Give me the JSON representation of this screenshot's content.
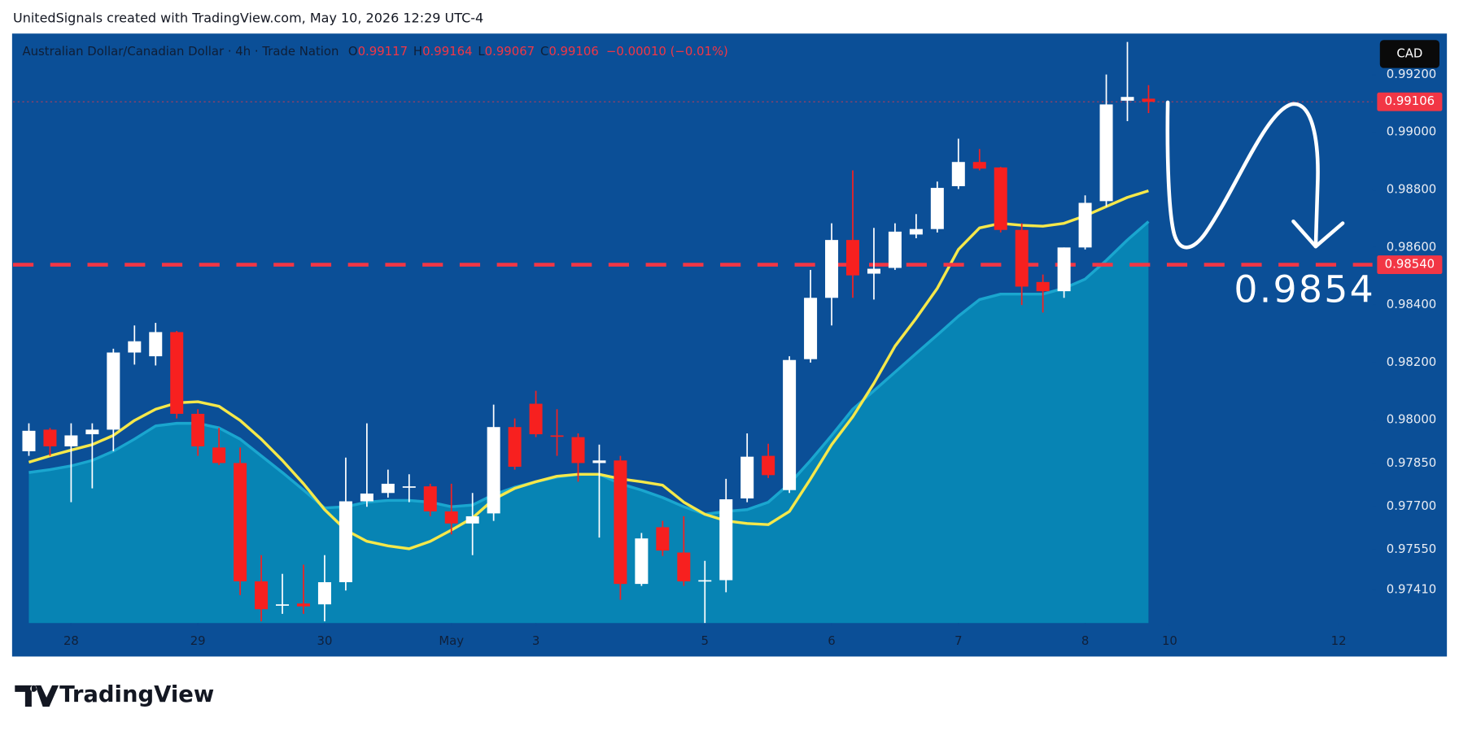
{
  "header": "UnitedSignals created with TradingView.com, May 10, 2026 12:29 UTC-4",
  "footer": "TradingView",
  "chart_data": {
    "type": "candlestick",
    "legend": {
      "title": "Australian Dollar/Canadian Dollar · 4h · Trade Nation",
      "labels": [
        "O",
        "H",
        "L",
        "C"
      ],
      "change": "−0.00010 (−0.01%)"
    },
    "currency": "CAD",
    "up_color": "#ffffff",
    "down_color": "#f7201f",
    "ohlc": [
      [
        0.97892,
        0.97989,
        0.97876,
        0.97963
      ],
      [
        0.97967,
        0.97973,
        0.97876,
        0.97909
      ],
      [
        0.97909,
        0.97989,
        0.97715,
        0.97947
      ],
      [
        0.97951,
        0.97989,
        0.97763,
        0.97967
      ],
      [
        0.97967,
        0.98248,
        0.97892,
        0.98235
      ],
      [
        0.98235,
        0.98329,
        0.98193,
        0.98274
      ],
      [
        0.98222,
        0.98338,
        0.9819,
        0.98306
      ],
      [
        0.98306,
        0.9831,
        0.98006,
        0.98022
      ],
      [
        0.98022,
        0.98038,
        0.97876,
        0.97909
      ],
      [
        0.97905,
        0.97973,
        0.97844,
        0.97851
      ],
      [
        0.97851,
        0.97905,
        0.97392,
        0.9744
      ],
      [
        0.9744,
        0.97531,
        0.97301,
        0.97343
      ],
      [
        0.97356,
        0.97466,
        0.97327,
        0.9736
      ],
      [
        0.97363,
        0.97498,
        0.97327,
        0.97353
      ],
      [
        0.9736,
        0.97531,
        0.97301,
        0.97437
      ],
      [
        0.97437,
        0.9787,
        0.97408,
        0.97718
      ],
      [
        0.97718,
        0.97989,
        0.97699,
        0.97745
      ],
      [
        0.97747,
        0.97828,
        0.97731,
        0.97779
      ],
      [
        0.97767,
        0.97812,
        0.97715,
        0.9777
      ],
      [
        0.9777,
        0.97779,
        0.97666,
        0.97683
      ],
      [
        0.97683,
        0.97779,
        0.97603,
        0.97641
      ],
      [
        0.97641,
        0.97747,
        0.97531,
        0.97666
      ],
      [
        0.97676,
        0.98054,
        0.9765,
        0.97976
      ],
      [
        0.97976,
        0.98006,
        0.97828,
        0.97838
      ],
      [
        0.98057,
        0.98102,
        0.97941,
        0.97951
      ],
      [
        0.97947,
        0.98038,
        0.97876,
        0.97944
      ],
      [
        0.97941,
        0.97954,
        0.97786,
        0.97851
      ],
      [
        0.97851,
        0.97915,
        0.97592,
        0.9786
      ],
      [
        0.9786,
        0.97876,
        0.97376,
        0.97431
      ],
      [
        0.97431,
        0.97608,
        0.97424,
        0.97589
      ],
      [
        0.97628,
        0.9765,
        0.97528,
        0.97547
      ],
      [
        0.9754,
        0.97666,
        0.97424,
        0.9744
      ],
      [
        0.9744,
        0.97511,
        0.97295,
        0.97444
      ],
      [
        0.97444,
        0.97796,
        0.97402,
        0.97725
      ],
      [
        0.97728,
        0.97954,
        0.97715,
        0.97873
      ],
      [
        0.97876,
        0.97918,
        0.97799,
        0.97809
      ],
      [
        0.97757,
        0.98222,
        0.97747,
        0.98209
      ],
      [
        0.98212,
        0.98522,
        0.982,
        0.98425
      ],
      [
        0.98425,
        0.98684,
        0.98329,
        0.98626
      ],
      [
        0.98626,
        0.98868,
        0.98425,
        0.98503
      ],
      [
        0.98509,
        0.98668,
        0.98419,
        0.98526
      ],
      [
        0.98529,
        0.98684,
        0.98522,
        0.98655
      ],
      [
        0.98645,
        0.98716,
        0.98632,
        0.98664
      ],
      [
        0.98664,
        0.98829,
        0.98652,
        0.98807
      ],
      [
        0.98813,
        0.98978,
        0.98803,
        0.98897
      ],
      [
        0.98897,
        0.98942,
        0.98868,
        0.98874
      ],
      [
        0.98878,
        0.9888,
        0.98652,
        0.98661
      ],
      [
        0.98661,
        0.98684,
        0.984,
        0.98464
      ],
      [
        0.9848,
        0.98506,
        0.98374,
        0.98448
      ],
      [
        0.98448,
        0.986,
        0.98425,
        0.986
      ],
      [
        0.986,
        0.98781,
        0.98593,
        0.98755
      ],
      [
        0.98761,
        0.99201,
        0.98742,
        0.99097
      ],
      [
        0.9911,
        0.99314,
        0.99039,
        0.99123
      ],
      [
        0.99117,
        0.99164,
        0.99067,
        0.99106
      ]
    ],
    "moving_averages": [
      {
        "color": "#f5e84a",
        "values": [
          0.97854,
          0.97876,
          0.97896,
          0.97915,
          0.97947,
          0.97999,
          0.98038,
          0.9806,
          0.98064,
          0.98048,
          0.97999,
          0.97934,
          0.9786,
          0.97779,
          0.97689,
          0.97618,
          0.97579,
          0.97563,
          0.97553,
          0.97579,
          0.97618,
          0.9766,
          0.97725,
          0.97763,
          0.97786,
          0.97805,
          0.97812,
          0.97812,
          0.97796,
          0.97786,
          0.97774,
          0.97715,
          0.97673,
          0.9765,
          0.97641,
          0.97637,
          0.97683,
          0.97796,
          0.97915,
          0.98012,
          0.98128,
          0.98257,
          0.98354,
          0.98458,
          0.98593,
          0.98668,
          0.98684,
          0.98677,
          0.98674,
          0.98684,
          0.9871,
          0.98742,
          0.98774,
          0.98797
        ]
      },
      {
        "color": "#1aa6cf",
        "fill": "#0784b4",
        "values": [
          0.97818,
          0.97828,
          0.97841,
          0.9786,
          0.97892,
          0.97934,
          0.9798,
          0.97989,
          0.97989,
          0.97973,
          0.97934,
          0.97876,
          0.97818,
          0.97757,
          0.97695,
          0.97699,
          0.97715,
          0.97721,
          0.97721,
          0.97715,
          0.97699,
          0.97705,
          0.97741,
          0.97767,
          0.97786,
          0.97802,
          0.97812,
          0.97812,
          0.97779,
          0.97757,
          0.97731,
          0.97699,
          0.97673,
          0.97683,
          0.97689,
          0.97715,
          0.97779,
          0.9786,
          0.97947,
          0.98038,
          0.98102,
          0.98167,
          0.98232,
          0.98296,
          0.98361,
          0.98419,
          0.98438,
          0.98438,
          0.98438,
          0.98458,
          0.9849,
          0.98555,
          0.98626,
          0.9869
        ]
      }
    ],
    "level": {
      "value": 0.9854,
      "label": "0.98540",
      "color": "#f23645"
    },
    "price_color": "#f23645",
    "xlim": [
      -0.75,
      63.6
    ],
    "xticks": [
      {
        "value": 2,
        "label": "28"
      },
      {
        "value": 8,
        "label": "29"
      },
      {
        "value": 14,
        "label": "30"
      },
      {
        "value": 20,
        "label": "May"
      },
      {
        "value": 24,
        "label": "3"
      },
      {
        "value": 32,
        "label": "5"
      },
      {
        "value": 38,
        "label": "6"
      },
      {
        "value": 44,
        "label": "7"
      },
      {
        "value": 50,
        "label": "8"
      },
      {
        "value": 54,
        "label": "10"
      },
      {
        "value": 62,
        "label": "12"
      }
    ],
    "ylim": [
      0.97295,
      0.9934
    ],
    "yticks": [
      {
        "value": 0.9741,
        "label": "0.97410"
      },
      {
        "value": 0.9755,
        "label": "0.97550"
      },
      {
        "value": 0.977,
        "label": "0.97700"
      },
      {
        "value": 0.9785,
        "label": "0.97850"
      },
      {
        "value": 0.98,
        "label": "0.98000"
      },
      {
        "value": 0.982,
        "label": "0.98200"
      },
      {
        "value": 0.984,
        "label": "0.98400"
      },
      {
        "value": 0.986,
        "label": "0.98600"
      },
      {
        "value": 0.988,
        "label": "0.98800"
      },
      {
        "value": 0.99,
        "label": "0.99000"
      },
      {
        "value": 0.992,
        "label": "0.99200"
      }
    ]
  }
}
